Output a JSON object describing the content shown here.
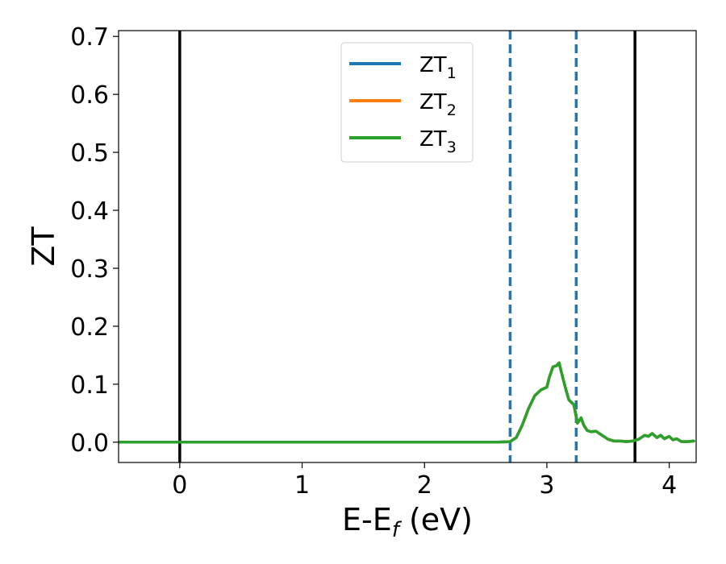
{
  "chart_data": {
    "type": "line",
    "xlabel": "E-E",
    "xlabel_sub": "f",
    "xlabel_unit": " (eV)",
    "ylabel": "ZT",
    "xlim": [
      -0.5,
      4.22
    ],
    "ylim": [
      -0.035,
      0.71
    ],
    "xticks": [
      0,
      1,
      2,
      3,
      4
    ],
    "xtick_labels": [
      "0",
      "1",
      "2",
      "3",
      "4"
    ],
    "yticks": [
      0.0,
      0.1,
      0.2,
      0.3,
      0.4,
      0.5,
      0.6,
      0.7
    ],
    "ytick_labels": [
      "0.0",
      "0.1",
      "0.2",
      "0.3",
      "0.4",
      "0.5",
      "0.6",
      "0.7"
    ],
    "grid": false,
    "legend_position": "top-center",
    "series": [
      {
        "name": "ZT",
        "sub": "1",
        "color": "#1f77b4",
        "x": [
          -0.5,
          2.6,
          2.7,
          2.75,
          2.8,
          2.85,
          2.9,
          2.95,
          3.0,
          3.02,
          3.05,
          3.08,
          3.1,
          3.12,
          3.15,
          3.18,
          3.22,
          3.25,
          3.28,
          3.3,
          3.33,
          3.36,
          3.4,
          3.45,
          3.5,
          3.55,
          3.6,
          3.65,
          3.7,
          3.75,
          3.8,
          3.83,
          3.86,
          3.9,
          3.93,
          3.96,
          4.0,
          4.03,
          4.06,
          4.1,
          4.15,
          4.2
        ],
        "y": [
          0.0,
          0.0,
          0.001,
          0.008,
          0.03,
          0.058,
          0.08,
          0.09,
          0.095,
          0.112,
          0.13,
          0.132,
          0.137,
          0.12,
          0.095,
          0.073,
          0.065,
          0.033,
          0.042,
          0.03,
          0.02,
          0.018,
          0.019,
          0.012,
          0.005,
          0.002,
          0.002,
          0.001,
          0.002,
          0.005,
          0.012,
          0.01,
          0.015,
          0.008,
          0.012,
          0.006,
          0.01,
          0.004,
          0.006,
          0.001,
          0.001,
          0.002
        ]
      },
      {
        "name": "ZT",
        "sub": "2",
        "color": "#ff7f0e",
        "x": [
          -0.5,
          2.6,
          2.7,
          2.75,
          2.8,
          2.85,
          2.9,
          2.95,
          3.0,
          3.02,
          3.05,
          3.08,
          3.1,
          3.12,
          3.15,
          3.18,
          3.22,
          3.25,
          3.28,
          3.3,
          3.33,
          3.36,
          3.4,
          3.45,
          3.5,
          3.55,
          3.6,
          3.65,
          3.7,
          3.75,
          3.8,
          3.83,
          3.86,
          3.9,
          3.93,
          3.96,
          4.0,
          4.03,
          4.06,
          4.1,
          4.15,
          4.2
        ],
        "y": [
          0.0,
          0.0,
          0.001,
          0.008,
          0.03,
          0.058,
          0.08,
          0.09,
          0.095,
          0.112,
          0.13,
          0.132,
          0.137,
          0.12,
          0.095,
          0.073,
          0.065,
          0.033,
          0.042,
          0.03,
          0.02,
          0.018,
          0.019,
          0.012,
          0.005,
          0.002,
          0.002,
          0.001,
          0.002,
          0.005,
          0.012,
          0.01,
          0.015,
          0.008,
          0.012,
          0.006,
          0.01,
          0.004,
          0.006,
          0.001,
          0.001,
          0.002
        ]
      },
      {
        "name": "ZT",
        "sub": "3",
        "color": "#2ca02c",
        "x": [
          -0.5,
          2.6,
          2.7,
          2.75,
          2.8,
          2.85,
          2.9,
          2.95,
          3.0,
          3.02,
          3.05,
          3.08,
          3.1,
          3.12,
          3.15,
          3.18,
          3.22,
          3.25,
          3.28,
          3.3,
          3.33,
          3.36,
          3.4,
          3.45,
          3.5,
          3.55,
          3.6,
          3.65,
          3.7,
          3.75,
          3.8,
          3.83,
          3.86,
          3.9,
          3.93,
          3.96,
          4.0,
          4.03,
          4.06,
          4.1,
          4.15,
          4.2
        ],
        "y": [
          0.0,
          0.0,
          0.001,
          0.008,
          0.03,
          0.058,
          0.08,
          0.09,
          0.095,
          0.112,
          0.13,
          0.132,
          0.137,
          0.12,
          0.095,
          0.073,
          0.065,
          0.033,
          0.042,
          0.03,
          0.02,
          0.018,
          0.019,
          0.012,
          0.005,
          0.002,
          0.002,
          0.001,
          0.002,
          0.005,
          0.012,
          0.01,
          0.015,
          0.008,
          0.012,
          0.006,
          0.01,
          0.004,
          0.006,
          0.001,
          0.001,
          0.002
        ]
      }
    ],
    "vlines": [
      {
        "x": 0.0,
        "style": "solid",
        "color": "#000000"
      },
      {
        "x": 2.7,
        "style": "dashed",
        "color": "#1f77b4"
      },
      {
        "x": 3.24,
        "style": "dashed",
        "color": "#1f77b4"
      },
      {
        "x": 3.72,
        "style": "solid",
        "color": "#000000"
      }
    ]
  }
}
